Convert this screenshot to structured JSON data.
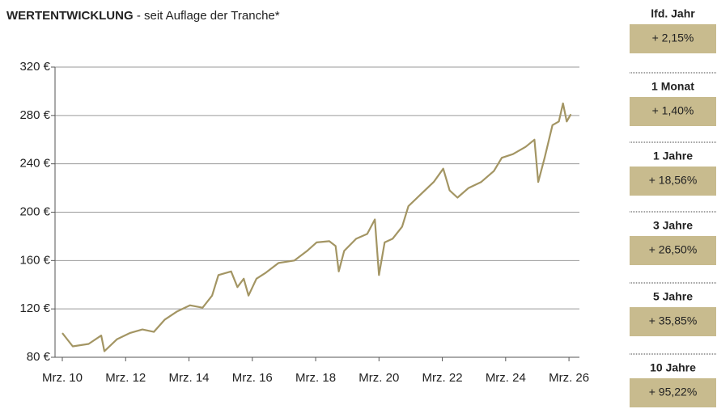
{
  "chart_data": {
    "type": "line",
    "title": "WERTENTWICKLUNG",
    "subtitle": " - seit Auflage der Tranche*",
    "color": "#a39563",
    "x": [
      2010.17,
      2010.5,
      2011.0,
      2011.4,
      2011.5,
      2011.9,
      2012.3,
      2012.7,
      2013.06,
      2013.4,
      2013.8,
      2014.2,
      2014.6,
      2014.9,
      2015.1,
      2015.5,
      2015.7,
      2015.9,
      2016.05,
      2016.3,
      2016.6,
      2017.0,
      2017.5,
      2017.9,
      2018.2,
      2018.6,
      2018.8,
      2018.9,
      2019.07,
      2019.45,
      2019.8,
      2020.04,
      2020.17,
      2020.35,
      2020.6,
      2020.9,
      2021.1,
      2021.5,
      2021.9,
      2022.2,
      2022.4,
      2022.65,
      2023.0,
      2023.4,
      2023.8,
      2024.05,
      2024.4,
      2024.8,
      2025.08,
      2025.2,
      2025.4,
      2025.65,
      2025.85,
      2025.98,
      2026.1,
      2026.23
    ],
    "values": [
      100,
      89,
      91,
      98,
      85,
      95,
      100,
      103,
      101,
      111,
      118,
      123,
      121,
      131,
      148,
      151,
      138,
      145,
      131,
      145,
      150,
      158,
      160,
      168,
      175,
      176,
      172,
      151,
      168,
      178,
      182,
      194,
      148,
      175,
      178,
      188,
      205,
      215,
      225,
      236,
      218,
      212,
      220,
      225,
      234,
      245,
      248,
      254,
      260,
      225,
      245,
      272,
      275,
      290,
      275,
      281
    ],
    "xlim": [
      2009.94,
      2026.5
    ],
    "xticks": [
      {
        "value": 2010.17,
        "label": "Mrz. 10"
      },
      {
        "value": 2012.17,
        "label": "Mrz. 12"
      },
      {
        "value": 2014.17,
        "label": "Mrz. 14"
      },
      {
        "value": 2016.17,
        "label": "Mrz. 16"
      },
      {
        "value": 2018.17,
        "label": "Mrz. 18"
      },
      {
        "value": 2020.17,
        "label": "Mrz. 20"
      },
      {
        "value": 2022.17,
        "label": "Mrz. 22"
      },
      {
        "value": 2024.17,
        "label": "Mrz. 24"
      },
      {
        "value": 2026.17,
        "label": "Mrz. 26"
      }
    ],
    "ylim": [
      80,
      320
    ],
    "yticks": [
      {
        "value": 80,
        "label": "80 €"
      },
      {
        "value": 120,
        "label": "120 €"
      },
      {
        "value": 160,
        "label": "160 €"
      },
      {
        "value": 200,
        "label": "200 €"
      },
      {
        "value": 240,
        "label": "240 €"
      },
      {
        "value": 280,
        "label": "280 €"
      },
      {
        "value": 320,
        "label": "320 €"
      }
    ],
    "grid": true
  },
  "performance": [
    {
      "label": "lfd. Jahr",
      "value": "+ 2,15%"
    },
    {
      "label": "1 Monat",
      "value": "+ 1,40%"
    },
    {
      "label": "1 Jahre",
      "value": "+ 18,56%"
    },
    {
      "label": "3 Jahre",
      "value": "+ 26,50%"
    },
    {
      "label": "5 Jahre",
      "value": "+ 35,85%"
    },
    {
      "label": "10 Jahre",
      "value": "+ 95,22%"
    }
  ]
}
